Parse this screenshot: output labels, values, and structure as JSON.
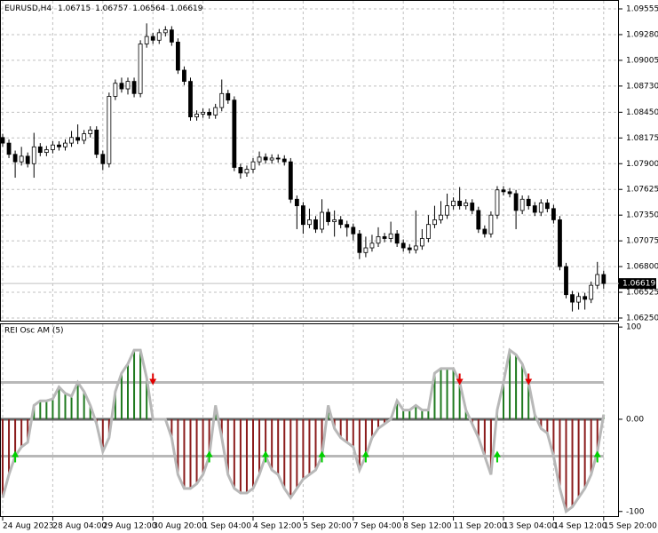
{
  "chart_data": [
    {
      "type": "candlestick",
      "symbol": "EURUSD,H4",
      "categories": [
        "24 Aug 2023",
        null,
        null,
        null,
        null,
        null,
        null,
        null,
        "28 Aug 04:00",
        null,
        null,
        null,
        null,
        null,
        null,
        null,
        "29 Aug 12:00",
        null,
        null,
        null,
        null,
        null,
        null,
        null,
        "30 Aug 20:00",
        null,
        null,
        null,
        null,
        null,
        null,
        null,
        "1 Sep 04:00",
        null,
        null,
        null,
        null,
        null,
        null,
        null,
        "4 Sep 12:00",
        null,
        null,
        null,
        null,
        null,
        null,
        null,
        "5 Sep 20:00",
        null,
        null,
        null,
        null,
        null,
        null,
        null,
        "7 Sep 04:00",
        null,
        null,
        null,
        null,
        null,
        null,
        null,
        "8 Sep 12:00",
        null,
        null,
        null,
        null,
        null,
        null,
        null,
        "11 Sep 20:00",
        null,
        null,
        null,
        null,
        null,
        null,
        null,
        "13 Sep 04:00",
        null,
        null,
        null,
        null,
        null,
        null,
        null,
        "14 Sep 12:00",
        null,
        null,
        null,
        null,
        null,
        null,
        null,
        "15 Sep 20:00"
      ],
      "open": [
        1.0818,
        1.0812,
        1.08,
        1.0792,
        1.0798,
        1.079,
        1.0808,
        1.0802,
        1.0805,
        1.081,
        1.0808,
        1.0812,
        1.0818,
        1.0815,
        1.0822,
        1.0826,
        1.08,
        1.079,
        1.0862,
        1.0876,
        1.087,
        1.0878,
        1.0865,
        1.0918,
        1.0926,
        1.0922,
        1.093,
        1.0933,
        1.092,
        1.089,
        1.0878,
        1.084,
        1.0843,
        1.0845,
        1.0842,
        1.085,
        1.0865,
        1.0858,
        1.0786,
        1.078,
        1.0784,
        1.0792,
        1.0797,
        1.0794,
        1.0796,
        1.0795,
        1.0792,
        1.0752,
        1.0745,
        1.0725,
        1.073,
        1.072,
        1.0738,
        1.0728,
        1.073,
        1.0725,
        1.0722,
        1.0715,
        1.0695,
        1.07,
        1.0705,
        1.0712,
        1.071,
        1.0715,
        1.0705,
        1.07,
        1.0698,
        1.0702,
        1.071,
        1.0725,
        1.073,
        1.0735,
        1.0745,
        1.075,
        1.0745,
        1.0748,
        1.074,
        1.072,
        1.0715,
        1.0735,
        1.0762,
        1.076,
        1.0758,
        1.074,
        1.0752,
        1.0745,
        1.0738,
        1.0748,
        1.0742,
        1.073,
        1.068,
        1.065,
        1.0642,
        1.0648,
        1.0645,
        1.066,
        1.06715
      ],
      "high": [
        1.0822,
        1.0816,
        1.0804,
        1.0808,
        1.0802,
        1.0823,
        1.0812,
        1.0809,
        1.0814,
        1.0814,
        1.0816,
        1.0825,
        1.0832,
        1.0826,
        1.083,
        1.083,
        1.0804,
        1.0866,
        1.088,
        1.0882,
        1.0882,
        1.0882,
        1.0922,
        1.094,
        1.093,
        1.0934,
        1.0937,
        1.0937,
        1.0924,
        1.0894,
        1.0882,
        1.0847,
        1.0849,
        1.0849,
        1.0854,
        1.088,
        1.0869,
        1.0862,
        1.079,
        1.0788,
        1.0796,
        1.0803,
        1.0801,
        1.08,
        1.08,
        1.0799,
        1.0796,
        1.0756,
        1.0749,
        1.0742,
        1.0734,
        1.0752,
        1.0742,
        1.074,
        1.0734,
        1.0729,
        1.0726,
        1.0719,
        1.0712,
        1.0714,
        1.0722,
        1.0716,
        1.0728,
        1.0719,
        1.0709,
        1.0704,
        1.074,
        1.072,
        1.0735,
        1.0745,
        1.075,
        1.0758,
        1.0754,
        1.0765,
        1.0752,
        1.0752,
        1.0744,
        1.0724,
        1.0739,
        1.0766,
        1.0766,
        1.0764,
        1.0762,
        1.0756,
        1.0756,
        1.0749,
        1.0752,
        1.0752,
        1.0746,
        1.0734,
        1.0684,
        1.0654,
        1.0652,
        1.0652,
        1.0664,
        1.0685,
        1.06757
      ],
      "low": [
        1.0808,
        1.0796,
        1.0775,
        1.0788,
        1.0786,
        1.0775,
        1.0798,
        1.0798,
        1.0801,
        1.0804,
        1.0804,
        1.0808,
        1.0811,
        1.0811,
        1.0818,
        1.0796,
        1.0783,
        1.0786,
        1.0858,
        1.0866,
        1.0864,
        1.0861,
        1.0861,
        1.0914,
        1.0918,
        1.0918,
        1.0926,
        1.0916,
        1.0886,
        1.0874,
        1.0836,
        1.0836,
        1.0839,
        1.0838,
        1.0838,
        1.0846,
        1.0854,
        1.0782,
        1.0774,
        1.0776,
        1.078,
        1.0788,
        1.079,
        1.079,
        1.0791,
        1.0788,
        1.0748,
        1.072,
        1.0715,
        1.0721,
        1.0716,
        1.0716,
        1.0724,
        1.0712,
        1.0721,
        1.0712,
        1.0708,
        1.0688,
        1.069,
        1.0696,
        1.0701,
        1.0706,
        1.0706,
        1.0701,
        1.0696,
        1.0694,
        1.0694,
        1.0698,
        1.0706,
        1.0721,
        1.0726,
        1.0731,
        1.0741,
        1.0741,
        1.0741,
        1.0736,
        1.0716,
        1.0711,
        1.0711,
        1.0731,
        1.0756,
        1.0754,
        1.072,
        1.0736,
        1.0741,
        1.0734,
        1.0734,
        1.0738,
        1.0726,
        1.0676,
        1.0646,
        1.0632,
        1.0634,
        1.0634,
        1.0641,
        1.0656,
        1.06564
      ],
      "close": [
        1.0812,
        1.08,
        1.0792,
        1.0798,
        1.079,
        1.0808,
        1.0802,
        1.0805,
        1.081,
        1.0808,
        1.0812,
        1.0818,
        1.0815,
        1.0822,
        1.0826,
        1.08,
        1.079,
        1.0862,
        1.0876,
        1.087,
        1.0878,
        1.0865,
        1.0918,
        1.0926,
        1.0922,
        1.093,
        1.0933,
        1.092,
        1.089,
        1.0878,
        1.084,
        1.0843,
        1.0845,
        1.0842,
        1.085,
        1.0865,
        1.0858,
        1.0786,
        1.078,
        1.0784,
        1.0792,
        1.0797,
        1.0794,
        1.0796,
        1.0795,
        1.0792,
        1.0752,
        1.0745,
        1.0725,
        1.073,
        1.072,
        1.0738,
        1.0728,
        1.073,
        1.0725,
        1.0722,
        1.0715,
        1.0695,
        1.07,
        1.0705,
        1.0712,
        1.071,
        1.0715,
        1.0705,
        1.07,
        1.0698,
        1.0702,
        1.071,
        1.0725,
        1.073,
        1.0735,
        1.0745,
        1.075,
        1.0745,
        1.0748,
        1.074,
        1.072,
        1.0715,
        1.0735,
        1.0762,
        1.076,
        1.0758,
        1.074,
        1.0752,
        1.0745,
        1.0738,
        1.0748,
        1.0742,
        1.073,
        1.068,
        1.065,
        1.0642,
        1.0648,
        1.0645,
        1.066,
        1.06715,
        1.06619
      ],
      "up_color": "#ffffff",
      "down_color": "#000000",
      "edge_color": "#000000",
      "ylim": [
        1.06212,
        1.0965
      ],
      "yticks": [
        1.09555,
        {
          "value": 1.0928,
          "label": "1.09280"
        },
        1.09005,
        {
          "value": 1.0873,
          "label": "1.08730"
        },
        {
          "value": 1.0845,
          "label": "1.08450"
        },
        1.08175,
        {
          "value": 1.079,
          "label": "1.07900"
        },
        1.07625,
        {
          "value": 1.0735,
          "label": "1.07350"
        },
        1.07075,
        {
          "value": 1.068,
          "label": "1.06800"
        },
        1.06525,
        {
          "value": 1.0625,
          "label": "1.06250"
        }
      ],
      "grid": true
    },
    {
      "type": "bar",
      "title": "REI Osc AM (5)",
      "values": [
        -85,
        -60,
        -40,
        -30,
        -25,
        15,
        20,
        20,
        22,
        35,
        28,
        25,
        40,
        30,
        15,
        -5,
        -35,
        -20,
        30,
        50,
        60,
        75,
        75,
        45,
        0,
        0,
        0,
        -20,
        -60,
        -75,
        -75,
        -70,
        -60,
        -40,
        15,
        -20,
        -60,
        -75,
        -80,
        -80,
        -75,
        -60,
        -40,
        -55,
        -60,
        -75,
        -85,
        -75,
        -65,
        -60,
        -55,
        -40,
        15,
        -10,
        -20,
        -25,
        -30,
        -55,
        -40,
        -20,
        -10,
        -5,
        0,
        20,
        10,
        10,
        15,
        10,
        10,
        50,
        55,
        55,
        55,
        40,
        10,
        -5,
        -20,
        -40,
        -60,
        10,
        40,
        75,
        70,
        60,
        40,
        5,
        -10,
        -15,
        -40,
        -75,
        -100,
        -95,
        -85,
        -75,
        -60,
        -35,
        5
      ],
      "positive_color": "#1f7a1f",
      "negative_color": "#8b1c1c",
      "line_color": "#b8b8b8",
      "levels": [
        40,
        -40
      ],
      "ylim": [
        -106,
        104
      ],
      "yticks": [
        100,
        {
          "value": 0,
          "label": "0.00"
        },
        -100
      ]
    }
  ]
}
